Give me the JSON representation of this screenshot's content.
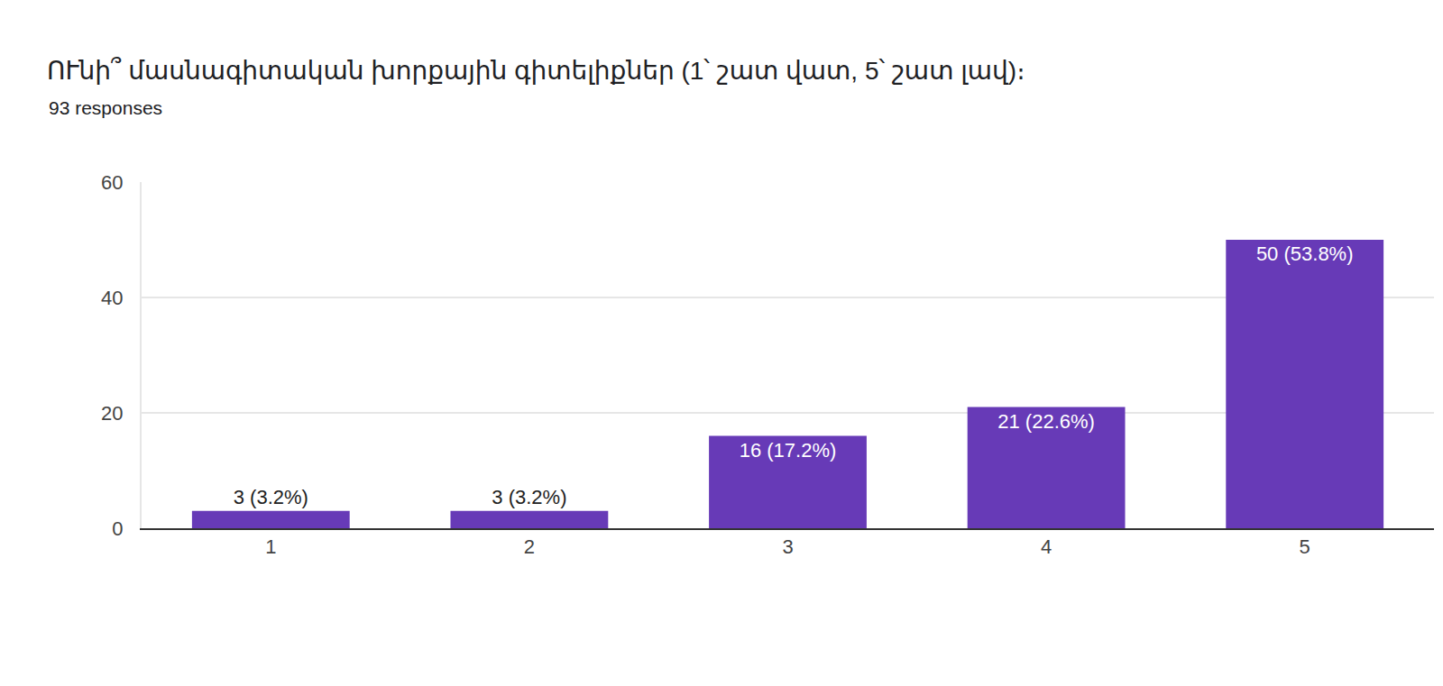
{
  "chart_data": {
    "type": "bar",
    "title": "ՈՒնի՞ մասնագիտական խորքային գիտելիքներ (1՝ շատ վատ, 5՝ շատ լավ)։",
    "subtitle": "93 responses",
    "categories": [
      "1",
      "2",
      "3",
      "4",
      "5"
    ],
    "values": [
      3,
      3,
      16,
      21,
      50
    ],
    "value_labels": [
      "3 (3.2%)",
      "3 (3.2%)",
      "16 (17.2%)",
      "21 (22.6%)",
      "50 (53.8%)"
    ],
    "color": "#673ab7",
    "ylim": [
      0,
      60
    ],
    "yticks": [
      0,
      20,
      40,
      60
    ],
    "grid": true,
    "data_labels": true
  }
}
